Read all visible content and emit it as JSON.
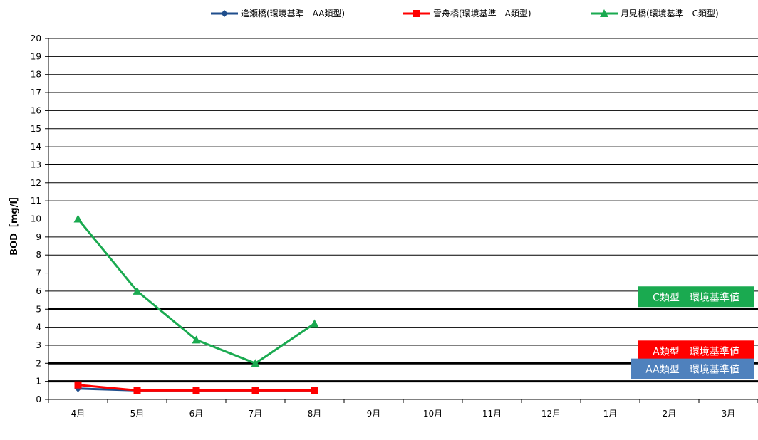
{
  "chart_data": {
    "type": "line",
    "title": "",
    "xlabel": "",
    "ylabel": "BOD［mg/l］",
    "categories": [
      "4月",
      "5月",
      "6月",
      "7月",
      "8月",
      "9月",
      "10月",
      "11月",
      "12月",
      "1月",
      "2月",
      "3月"
    ],
    "ylim": [
      0,
      20
    ],
    "yticks": [
      0,
      1,
      2,
      3,
      4,
      5,
      6,
      7,
      8,
      9,
      10,
      11,
      12,
      13,
      14,
      15,
      16,
      17,
      18,
      19,
      20
    ],
    "grid": true,
    "legend_position": "top",
    "series": [
      {
        "name": "逢瀬橋(環境基準　AA類型)",
        "color": "#1f4e8c",
        "marker": "diamond",
        "values": [
          0.6,
          0.5,
          0.5,
          0.5,
          0.5,
          null,
          null,
          null,
          null,
          null,
          null,
          null
        ]
      },
      {
        "name": "雪舟橋(環境基準　A類型)",
        "color": "#ff0000",
        "marker": "square",
        "values": [
          0.8,
          0.5,
          0.5,
          0.5,
          0.5,
          null,
          null,
          null,
          null,
          null,
          null,
          null
        ]
      },
      {
        "name": "月見橋(環境基準　C類型)",
        "color": "#1aaa50",
        "marker": "triangle",
        "values": [
          10,
          6,
          3.3,
          2,
          4.2,
          null,
          null,
          null,
          null,
          null,
          null,
          null
        ]
      }
    ],
    "reference_lines": [
      {
        "value": 5,
        "label": "C類型　環境基準値",
        "color": "#1aaa50"
      },
      {
        "value": 2,
        "label": "A類型　環境基準値",
        "color": "#ff0000"
      },
      {
        "value": 1,
        "label": "AA類型　環境基準値",
        "color": "#4f81bd"
      }
    ]
  }
}
